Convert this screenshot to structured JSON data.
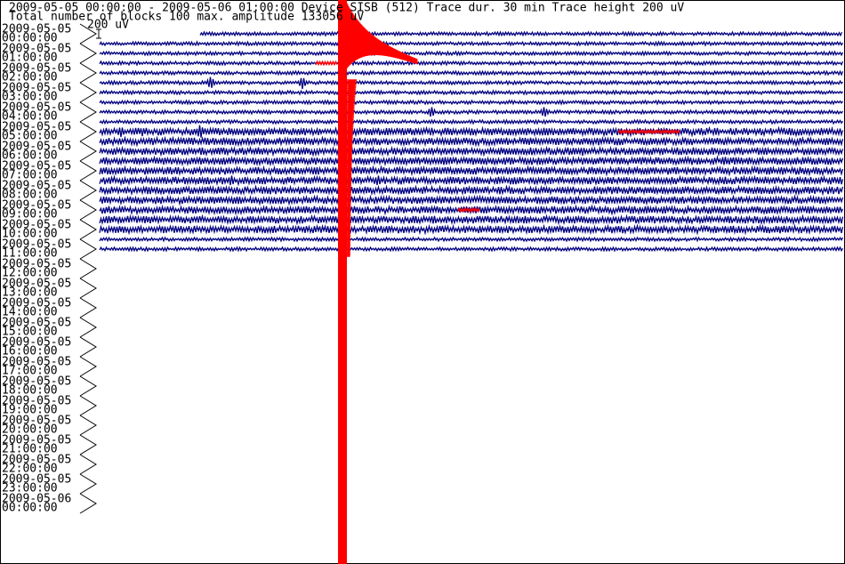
{
  "header": {
    "line1": "2009-05-05 00:00:00 - 2009-05-06 01:00:00 Device SISB (512)  Trace dur. 30 min  Trace height 200 uV",
    "line2": "Total number of blocks 100 max. amplitude 133056 uV",
    "scale": "200 uV"
  },
  "rows": [
    {
      "date": "2009-05-05",
      "time": "00:00:00"
    },
    {
      "date": "2009-05-05",
      "time": "01:00:00"
    },
    {
      "date": "2009-05-05",
      "time": "02:00:00"
    },
    {
      "date": "2009-05-05",
      "time": "03:00:00"
    },
    {
      "date": "2009-05-05",
      "time": "04:00:00"
    },
    {
      "date": "2009-05-05",
      "time": "05:00:00"
    },
    {
      "date": "2009-05-05",
      "time": "06:00:00"
    },
    {
      "date": "2009-05-05",
      "time": "07:00:00"
    },
    {
      "date": "2009-05-05",
      "time": "08:00:00"
    },
    {
      "date": "2009-05-05",
      "time": "09:00:00"
    },
    {
      "date": "2009-05-05",
      "time": "10:00:00"
    },
    {
      "date": "2009-05-05",
      "time": "11:00:00"
    },
    {
      "date": "2009-05-05",
      "time": "12:00:00"
    },
    {
      "date": "2009-05-05",
      "time": "13:00:00"
    },
    {
      "date": "2009-05-05",
      "time": "14:00:00"
    },
    {
      "date": "2009-05-05",
      "time": "15:00:00"
    },
    {
      "date": "2009-05-05",
      "time": "16:00:00"
    },
    {
      "date": "2009-05-05",
      "time": "17:00:00"
    },
    {
      "date": "2009-05-05",
      "time": "18:00:00"
    },
    {
      "date": "2009-05-05",
      "time": "19:00:00"
    },
    {
      "date": "2009-05-05",
      "time": "20:00:00"
    },
    {
      "date": "2009-05-05",
      "time": "21:00:00"
    },
    {
      "date": "2009-05-05",
      "time": "22:00:00"
    },
    {
      "date": "2009-05-05",
      "time": "23:00:00"
    },
    {
      "date": "2009-05-06",
      "time": "00:00:00"
    }
  ]
}
